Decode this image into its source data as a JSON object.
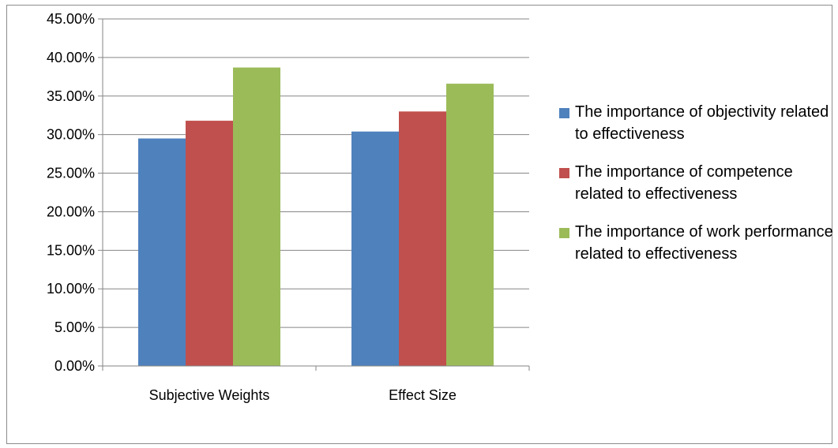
{
  "chart_data": {
    "type": "bar",
    "title": "",
    "xlabel": "",
    "ylabel": "",
    "categories": [
      "Subjective Weights",
      "Effect Size"
    ],
    "series": [
      {
        "name": "The importance of objectivity related to effectiveness",
        "values": [
          29.5,
          30.4
        ],
        "color": "#4f81bd"
      },
      {
        "name": "The importance of competence related to effectiveness",
        "values": [
          31.8,
          33.0
        ],
        "color": "#c0504d"
      },
      {
        "name": "The importance of work performance related to effectiveness",
        "values": [
          38.7,
          36.6
        ],
        "color": "#9bbb59"
      }
    ],
    "ylim": [
      0,
      45
    ],
    "yticks": [
      "0.00%",
      "5.00%",
      "10.00%",
      "15.00%",
      "20.00%",
      "25.00%",
      "30.00%",
      "35.00%",
      "40.00%",
      "45.00%"
    ],
    "grid": true,
    "legend_position": "right"
  }
}
